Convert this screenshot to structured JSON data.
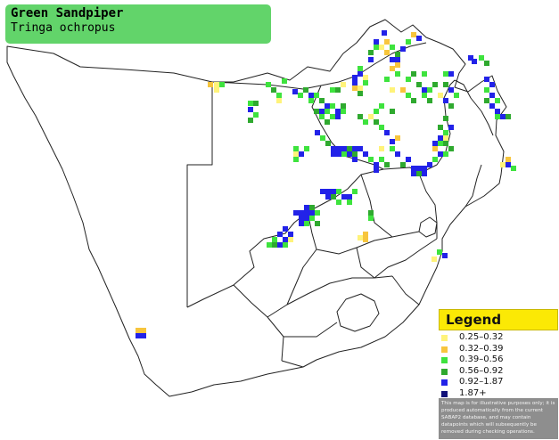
{
  "title": {
    "main": "Green Sandpiper",
    "sub": "Tringa ochropus"
  },
  "legend": {
    "heading": "Legend",
    "items": [
      {
        "label": "0.25–0.32",
        "color": "#fff37a"
      },
      {
        "label": "0.32–0.39",
        "color": "#f7c53d"
      },
      {
        "label": "0.39–0.56",
        "color": "#3ee33e"
      },
      {
        "label": "0.56–0.92",
        "color": "#2fa92f"
      },
      {
        "label": "0.92–1.87",
        "color": "#2222e8"
      },
      {
        "label": "1.87+",
        "color": "#12127a"
      }
    ],
    "note": "This map is for illustrative purposes only; it is produced automatically from the current SABAP2 database, and may contain datapoints which will subsequently be removed during checking operations."
  }
}
